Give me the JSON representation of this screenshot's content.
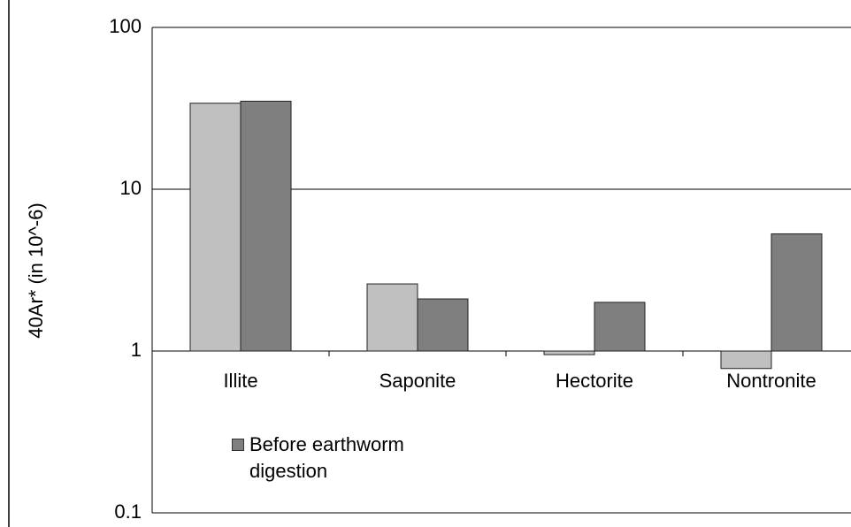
{
  "chart_data": {
    "type": "bar",
    "y_label": "40Ar* (in 10^-6)",
    "categories": [
      "Illite",
      "Saponite",
      "Hectorite",
      "Nontronite"
    ],
    "series": [
      {
        "color": "#c0c0c0",
        "values": [
          34,
          2.6,
          0.95,
          0.78
        ]
      },
      {
        "name": "Before earthworm digestion",
        "color": "#7f7f7f",
        "values": [
          35,
          2.1,
          2.0,
          5.3
        ]
      }
    ],
    "ylim": [
      0.1,
      100
    ],
    "yticks": [
      0.1,
      1,
      10,
      100
    ],
    "log_scale": true,
    "grid": true,
    "x_axis_at": 1
  }
}
